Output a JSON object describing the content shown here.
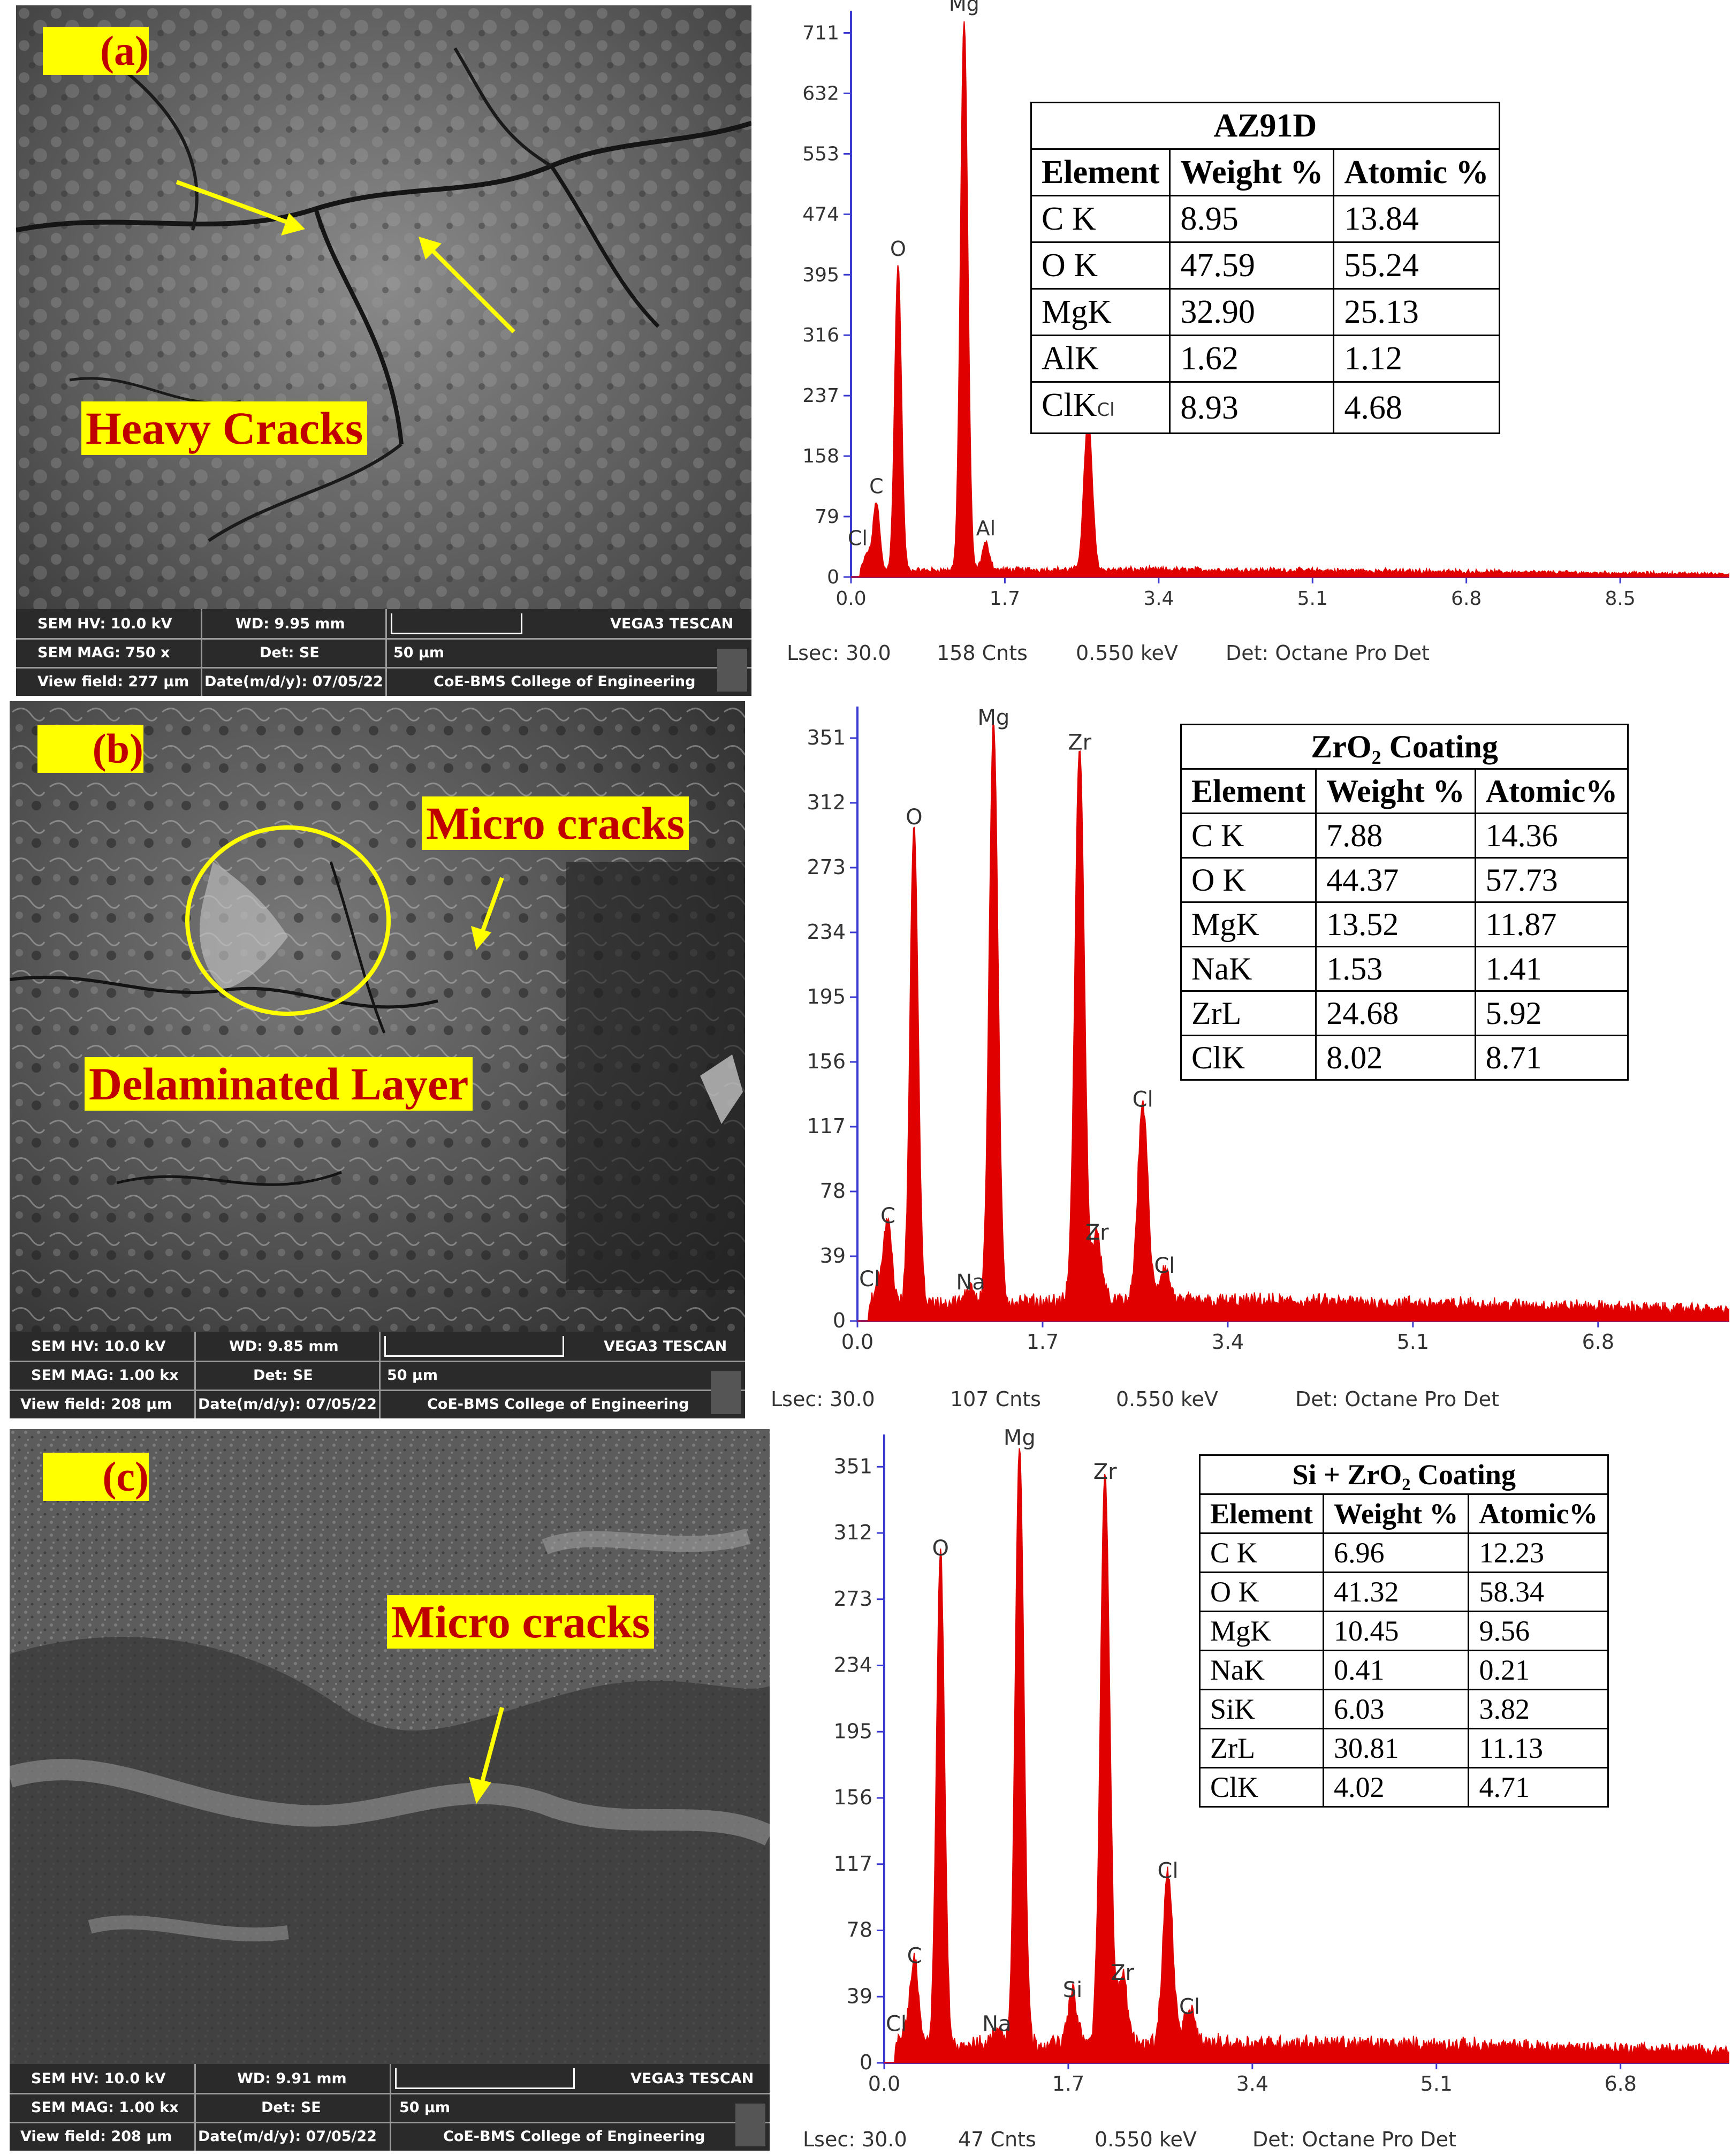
{
  "panels": [
    {
      "label": "(a)",
      "annotations": [
        "Heavy Cracks"
      ],
      "sem_info": {
        "hv": "SEM HV: 10.0 kV",
        "wd": "WD: 9.95 mm",
        "brand": "VEGA3 TESCAN",
        "mag": "SEM MAG: 750 x",
        "det": "Det: SE",
        "scale": "50 µm",
        "field": "View field: 277 µm",
        "date": "Date(m/d/y): 07/05/22",
        "lab": "CoE-BMS College of Engineering"
      },
      "table": {
        "title": "AZ91D",
        "headers": [
          "Element",
          "Weight %",
          "Atomic %"
        ],
        "rows": [
          [
            "C K",
            "8.95",
            "13.84"
          ],
          [
            "O K",
            "47.59",
            "55.24"
          ],
          [
            "MgK",
            "32.90",
            "25.13"
          ],
          [
            "AlK",
            "1.62",
            "1.12"
          ],
          [
            "ClK",
            "8.93",
            "4.68"
          ]
        ],
        "overlay": "Cl"
      },
      "footer": {
        "lsec": "Lsec: 30.0",
        "cnts": "158 Cnts",
        "kev": "0.550 keV",
        "det": "Det: Octane Pro Det"
      }
    },
    {
      "label": "(b)",
      "annotations": [
        "Micro cracks",
        "Delaminated Layer"
      ],
      "sem_info": {
        "hv": "SEM HV: 10.0 kV",
        "wd": "WD: 9.85 mm",
        "brand": "VEGA3 TESCAN",
        "mag": "SEM MAG: 1.00 kx",
        "det": "Det: SE",
        "scale": "50 µm",
        "field": "View field: 208 µm",
        "date": "Date(m/d/y): 07/05/22",
        "lab": "CoE-BMS College of Engineering"
      },
      "table": {
        "title": "ZrO₂ Coating",
        "headers": [
          "Element",
          "Weight %",
          "Atomic%"
        ],
        "rows": [
          [
            "C K",
            "7.88",
            "14.36"
          ],
          [
            "O K",
            "44.37",
            "57.73"
          ],
          [
            "MgK",
            "13.52",
            "11.87"
          ],
          [
            "NaK",
            "1.53",
            "1.41"
          ],
          [
            "ZrL",
            "24.68",
            "5.92"
          ],
          [
            "ClK",
            "8.02",
            "8.71"
          ]
        ]
      },
      "footer": {
        "lsec": "Lsec: 30.0",
        "cnts": "107 Cnts",
        "kev": "0.550 keV",
        "det": "Det: Octane Pro Det"
      }
    },
    {
      "label": "(c)",
      "annotations": [
        "Micro cracks"
      ],
      "sem_info": {
        "hv": "SEM HV: 10.0 kV",
        "wd": "WD: 9.91 mm",
        "brand": "VEGA3 TESCAN",
        "mag": "SEM MAG: 1.00 kx",
        "det": "Det: SE",
        "scale": "50 µm",
        "field": "View field: 208 µm",
        "date": "Date(m/d/y): 07/05/22",
        "lab": "CoE-BMS College of Engineering"
      },
      "table": {
        "title": "Si + ZrO₂ Coating",
        "headers": [
          "Element",
          "Weight %",
          "Atomic%"
        ],
        "rows": [
          [
            "C K",
            "6.96",
            "12.23"
          ],
          [
            "O K",
            "41.32",
            "58.34"
          ],
          [
            "MgK",
            "10.45",
            "9.56"
          ],
          [
            "NaK",
            "0.41",
            "0.21"
          ],
          [
            "SiK",
            "6.03",
            "3.82"
          ],
          [
            "ZrL",
            "30.81",
            "11.13"
          ],
          [
            "ClK",
            "4.02",
            "4.71"
          ]
        ]
      },
      "footer": {
        "lsec": "Lsec: 30.0",
        "cnts": "47 Cnts",
        "kev": "0.550 keV",
        "det": "Det: Octane Pro Det"
      }
    }
  ],
  "chart_data": [
    {
      "type": "line",
      "series_color": "#e00000",
      "yticks": [
        0,
        79,
        158,
        237,
        316,
        395,
        474,
        553,
        632,
        711
      ],
      "xticks": [
        "0.0",
        "1.7",
        "3.4",
        "5.1",
        "6.8",
        "8.5"
      ],
      "xlim": [
        0,
        9.7
      ],
      "ylim": [
        0,
        740
      ],
      "peaks": [
        {
          "label": "Cl",
          "x": 0.18,
          "y": 22
        },
        {
          "label": "C",
          "x": 0.28,
          "y": 90
        },
        {
          "label": "O",
          "x": 0.52,
          "y": 400
        },
        {
          "label": "Mg",
          "x": 1.25,
          "y": 720
        },
        {
          "label": "Al",
          "x": 1.49,
          "y": 35
        },
        {
          "label": "Cl",
          "x": 2.62,
          "y": 200
        }
      ],
      "noise": 8
    },
    {
      "type": "line",
      "series_color": "#e00000",
      "yticks": [
        0,
        39,
        78,
        117,
        156,
        195,
        234,
        273,
        312,
        351
      ],
      "xticks": [
        "0.0",
        "1.7",
        "3.4",
        "5.1",
        "6.8"
      ],
      "xlim": [
        0,
        8.0
      ],
      "ylim": [
        0,
        370
      ],
      "peaks": [
        {
          "label": "Cl",
          "x": 0.2,
          "y": 12
        },
        {
          "label": "C",
          "x": 0.28,
          "y": 50
        },
        {
          "label": "O",
          "x": 0.52,
          "y": 290
        },
        {
          "label": "Na",
          "x": 1.04,
          "y": 10
        },
        {
          "label": "Mg",
          "x": 1.25,
          "y": 350
        },
        {
          "label": "Zr",
          "x": 2.04,
          "y": 335
        },
        {
          "label": "Zr",
          "x": 2.2,
          "y": 40
        },
        {
          "label": "Cl",
          "x": 2.62,
          "y": 120
        },
        {
          "label": "Cl",
          "x": 2.82,
          "y": 20
        }
      ],
      "noise": 10
    },
    {
      "type": "line",
      "series_color": "#e00000",
      "yticks": [
        0,
        39,
        78,
        117,
        156,
        195,
        234,
        273,
        312,
        351
      ],
      "xticks": [
        "0.0",
        "1.7",
        "3.4",
        "5.1",
        "6.8"
      ],
      "xlim": [
        0,
        7.8
      ],
      "ylim": [
        0,
        370
      ],
      "peaks": [
        {
          "label": "Cl",
          "x": 0.2,
          "y": 10
        },
        {
          "label": "C",
          "x": 0.28,
          "y": 50
        },
        {
          "label": "O",
          "x": 0.52,
          "y": 290
        },
        {
          "label": "Na",
          "x": 1.04,
          "y": 10
        },
        {
          "label": "Mg",
          "x": 1.25,
          "y": 355
        },
        {
          "label": "Si",
          "x": 1.74,
          "y": 30
        },
        {
          "label": "Zr",
          "x": 2.04,
          "y": 335
        },
        {
          "label": "Zr",
          "x": 2.2,
          "y": 40
        },
        {
          "label": "Cl",
          "x": 2.62,
          "y": 100
        },
        {
          "label": "Cl",
          "x": 2.82,
          "y": 20
        }
      ],
      "noise": 10
    }
  ]
}
